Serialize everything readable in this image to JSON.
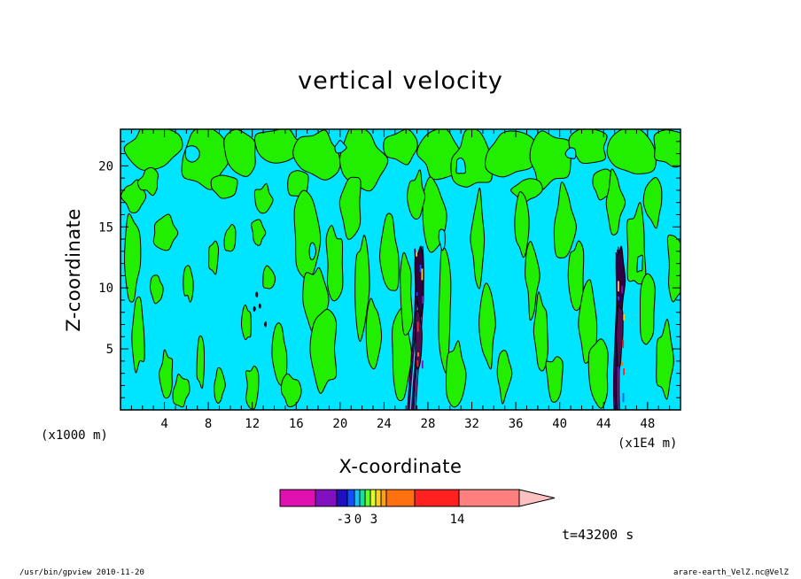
{
  "chart_data": {
    "type": "heatmap",
    "title": "vertical velocity",
    "xlabel": "X-coordinate",
    "ylabel": "Z-coordinate",
    "x_unit_left": "(x1000 m)",
    "x_unit_right": "(x1E4 m)",
    "xlim": [
      0,
      51
    ],
    "ylim": [
      0,
      23
    ],
    "x_ticks": [
      4,
      8,
      12,
      16,
      20,
      24,
      28,
      32,
      36,
      40,
      44,
      48
    ],
    "y_ticks": [
      5,
      10,
      15,
      20
    ],
    "colorbar": {
      "tick_labels": [
        {
          "value": -3,
          "label": "-3"
        },
        {
          "value": 0,
          "label": "0"
        },
        {
          "value": 3,
          "label": "3"
        },
        {
          "value": 14,
          "label": "14"
        }
      ],
      "colors": [
        "#e010b0",
        "#8010c0",
        "#2010c0",
        "#1050ff",
        "#10c0ff",
        "#10e0a0",
        "#60ff20",
        "#e0ff20",
        "#ffd020",
        "#ffa010",
        "#ff7010",
        "#ff2020",
        "#ff7f7f",
        "#ffc0c0"
      ]
    },
    "series_colors": {
      "background": "#00e5ff",
      "positive_weak": "#22ee00",
      "updraft_core": "#300040",
      "contour_line": "#000000"
    },
    "convective_cores": [
      {
        "x": 27.2,
        "z_top": 13.5
      },
      {
        "x": 45.5,
        "z_top": 13.5
      }
    ],
    "time_label": "t=43200 s"
  },
  "footer": {
    "left": "/usr/bin/gpview   2010-11-20",
    "right": "arare-earth_VelZ.nc@VelZ"
  }
}
